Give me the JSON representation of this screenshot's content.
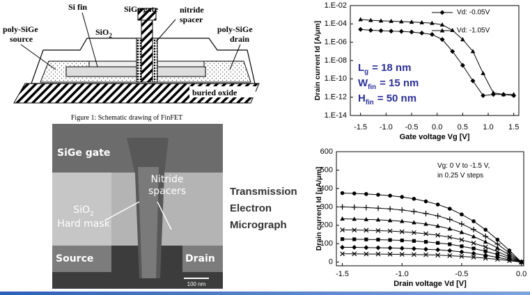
{
  "schematic": {
    "si_fin": "Si fin",
    "sige_gate": "SiGe gate",
    "nitride_spacer": [
      "nitride",
      "spacer"
    ],
    "poly_sige_source": [
      "poly-SiGe",
      "source"
    ],
    "poly_sige_drain": [
      "poly-SiGe",
      "drain"
    ],
    "sio2": {
      "text": "SiO",
      "subscript": "2"
    },
    "buried_oxide": "buried oxide",
    "caption": "Figure 1: Schematic drawing of FinFET"
  },
  "micrograph": {
    "sige_gate": "SiGe gate",
    "nitride_spacers": [
      "Nitride",
      "spacers"
    ],
    "sio2": {
      "text": "SiO",
      "subscript": "2"
    },
    "hard_mask": "Hard mask",
    "source": "Source",
    "drain": "Drain",
    "scale_bar": "100 nm"
  },
  "side_text": [
    "Transmission",
    "Electron",
    "Micrograph"
  ],
  "chart_data": [
    {
      "type": "line",
      "log_y": true,
      "x_label": "Gate voltage Vg [V]",
      "y_label": "Drain current Id [A/μm]",
      "x": [
        -1.5,
        -1.3,
        -1.1,
        -0.9,
        -0.7,
        -0.5,
        -0.3,
        -0.1,
        0.1,
        0.3,
        0.5,
        0.7,
        0.9,
        1.1,
        1.3,
        1.5
      ],
      "series": [
        {
          "name": "Vd: -0.05V",
          "color": "#000000",
          "marker": "diamond",
          "values": [
            2.5e-05,
            2e-05,
            1.8e-05,
            1.6e-05,
            1.5e-05,
            1.3e-05,
            1e-05,
            7e-06,
            2e-06,
            1e-07,
            3e-09,
            6e-11,
            1.5e-12,
            2e-12,
            2e-12,
            1.5e-12
          ]
        },
        {
          "name": "Vd: -1.05V",
          "color": "#000000",
          "marker": "triangle",
          "values": [
            0.0003,
            0.00025,
            0.00022,
            0.0002,
            0.00018,
            0.00016,
            0.00014,
            0.00012,
            8e-05,
            2e-05,
            2e-06,
            1e-07,
            4e-10,
            3e-12,
            2e-12,
            2e-12
          ]
        }
      ],
      "xlim": [
        -1.7,
        1.6
      ],
      "ylim": [
        1e-14,
        0.01
      ],
      "xticks": [
        -1.5,
        {
          "value": -1,
          "label": "-1.0"
        },
        -0.5,
        {
          "value": 0,
          "label": "0.0"
        },
        0.5,
        {
          "value": 1,
          "label": "1.0"
        },
        1.5
      ],
      "yticks": [
        {
          "value": 0.01,
          "label": "1.E-02"
        },
        {
          "value": 0.0001,
          "label": "1.E-04"
        },
        {
          "value": 1e-06,
          "label": "1.E-06"
        },
        {
          "value": 1e-08,
          "label": "1.E-08"
        },
        {
          "value": 1e-10,
          "label": "1.E-10"
        },
        {
          "value": 1e-12,
          "label": "1.E-12"
        },
        {
          "value": 1e-14,
          "label": "1.E-14"
        }
      ],
      "grid": false,
      "legend": "upper right",
      "annotation_color": "#2b2f9a",
      "annotations": [
        {
          "text": "L",
          "subscript": "g",
          "suffix": "= 18 nm"
        },
        {
          "text": "W",
          "subscript": "fin",
          "suffix": "= 15 nm"
        },
        {
          "text": "H",
          "subscript": "fin",
          "suffix": "= 50 nm"
        }
      ]
    },
    {
      "type": "line",
      "log_y": false,
      "x_label": "Drain voltage Vd [V]",
      "y_label": "Drain current Id [μA/μm]",
      "x": [
        -1.5,
        -1.4,
        -1.3,
        -1.2,
        -1.1,
        -1.0,
        -0.9,
        -0.8,
        -0.7,
        -0.6,
        -0.5,
        -0.4,
        -0.3,
        -0.2,
        -0.1,
        0
      ],
      "series": [
        {
          "color": "#000000",
          "marker": "circle",
          "values": [
            375,
            373,
            370,
            366,
            361,
            354,
            344,
            330,
            313,
            290,
            259,
            222,
            176,
            122,
            63,
            0
          ]
        },
        {
          "color": "#000000",
          "marker": "plus",
          "values": [
            300,
            298,
            296,
            293,
            289,
            283,
            275,
            264,
            251,
            232,
            207,
            177,
            140,
            98,
            50,
            0
          ]
        },
        {
          "color": "#000000",
          "marker": "triangle",
          "values": [
            235,
            234,
            232,
            230,
            226,
            222,
            215,
            207,
            196,
            181,
            162,
            139,
            110,
            77,
            39,
            0
          ]
        },
        {
          "color": "#000000",
          "marker": "cross",
          "values": [
            175,
            174,
            173,
            171,
            169,
            165,
            160,
            154,
            146,
            135,
            121,
            103,
            82,
            57,
            29,
            0
          ]
        },
        {
          "color": "#000000",
          "marker": "square",
          "values": [
            125,
            124,
            123,
            122,
            120,
            118,
            115,
            110,
            104,
            97,
            86,
            74,
            59,
            41,
            21,
            0
          ]
        },
        {
          "color": "#000000",
          "marker": "diamond",
          "values": [
            80,
            80,
            79,
            78,
            77,
            75,
            73,
            70,
            67,
            62,
            55,
            47,
            37,
            26,
            13,
            0
          ]
        },
        {
          "color": "#000000",
          "marker": "cross",
          "values": [
            45,
            45,
            44,
            44,
            43,
            42,
            41,
            40,
            38,
            35,
            31,
            27,
            21,
            15,
            8,
            0
          ]
        }
      ],
      "xlim": [
        -1.55,
        0.02
      ],
      "ylim": [
        -20,
        600
      ],
      "xticks": [
        -1.5,
        {
          "value": -1,
          "label": "-1.0"
        },
        -0.5,
        {
          "value": 0,
          "label": "0.0"
        }
      ],
      "yticks": [
        0,
        100,
        200,
        300,
        400,
        500,
        600
      ],
      "grid": false,
      "annotations": [
        "Vg: 0 V to -1.5 V,",
        "in 0.25 V steps"
      ]
    }
  ]
}
